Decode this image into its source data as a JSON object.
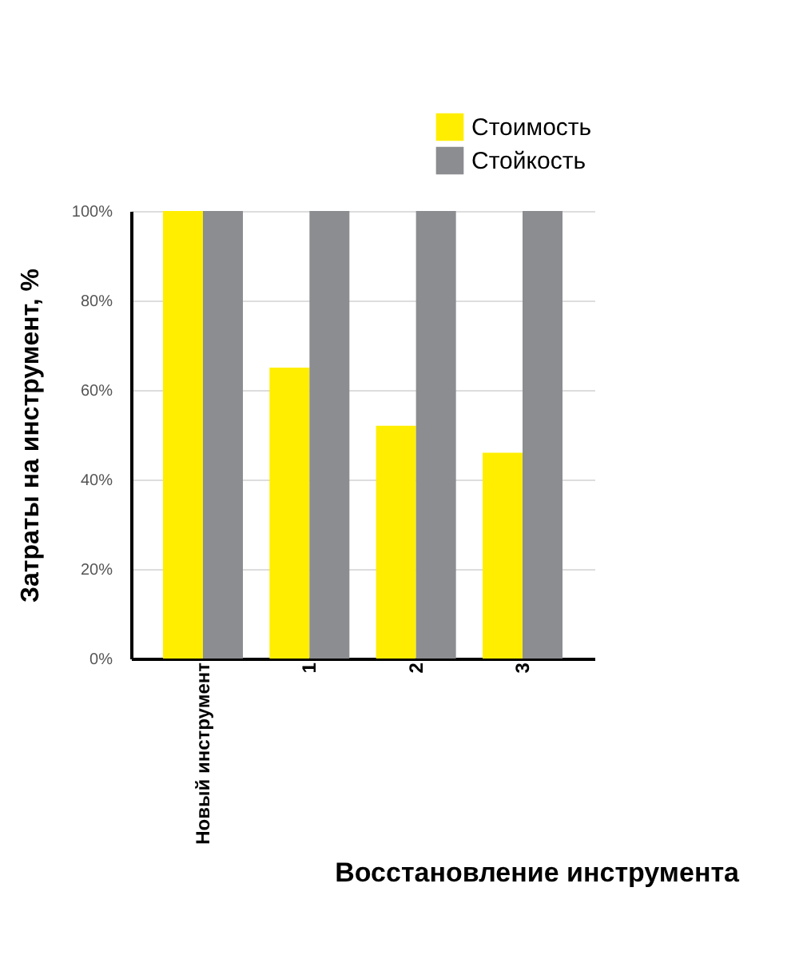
{
  "chart_data": {
    "type": "bar",
    "xlabel": "Восстановление инструмента",
    "ylabel": "Затраты на инструмент, %",
    "categories": [
      "Новый инструмент",
      "1",
      "2",
      "3"
    ],
    "series": [
      {
        "name": "Стоимость",
        "color": "#ffee00",
        "values": [
          100,
          65,
          52,
          46
        ]
      },
      {
        "name": "Стойкость",
        "color": "#8c8d90",
        "values": [
          100,
          100,
          100,
          100
        ]
      }
    ],
    "ylim": [
      0,
      100
    ],
    "yticks": [
      {
        "value": 0,
        "label": "0%"
      },
      {
        "value": 20,
        "label": "20%"
      },
      {
        "value": 40,
        "label": "40%"
      },
      {
        "value": 60,
        "label": "60%"
      },
      {
        "value": 80,
        "label": "80%"
      },
      {
        "value": 100,
        "label": "100%"
      }
    ],
    "grid": "y",
    "legend": "top right"
  }
}
